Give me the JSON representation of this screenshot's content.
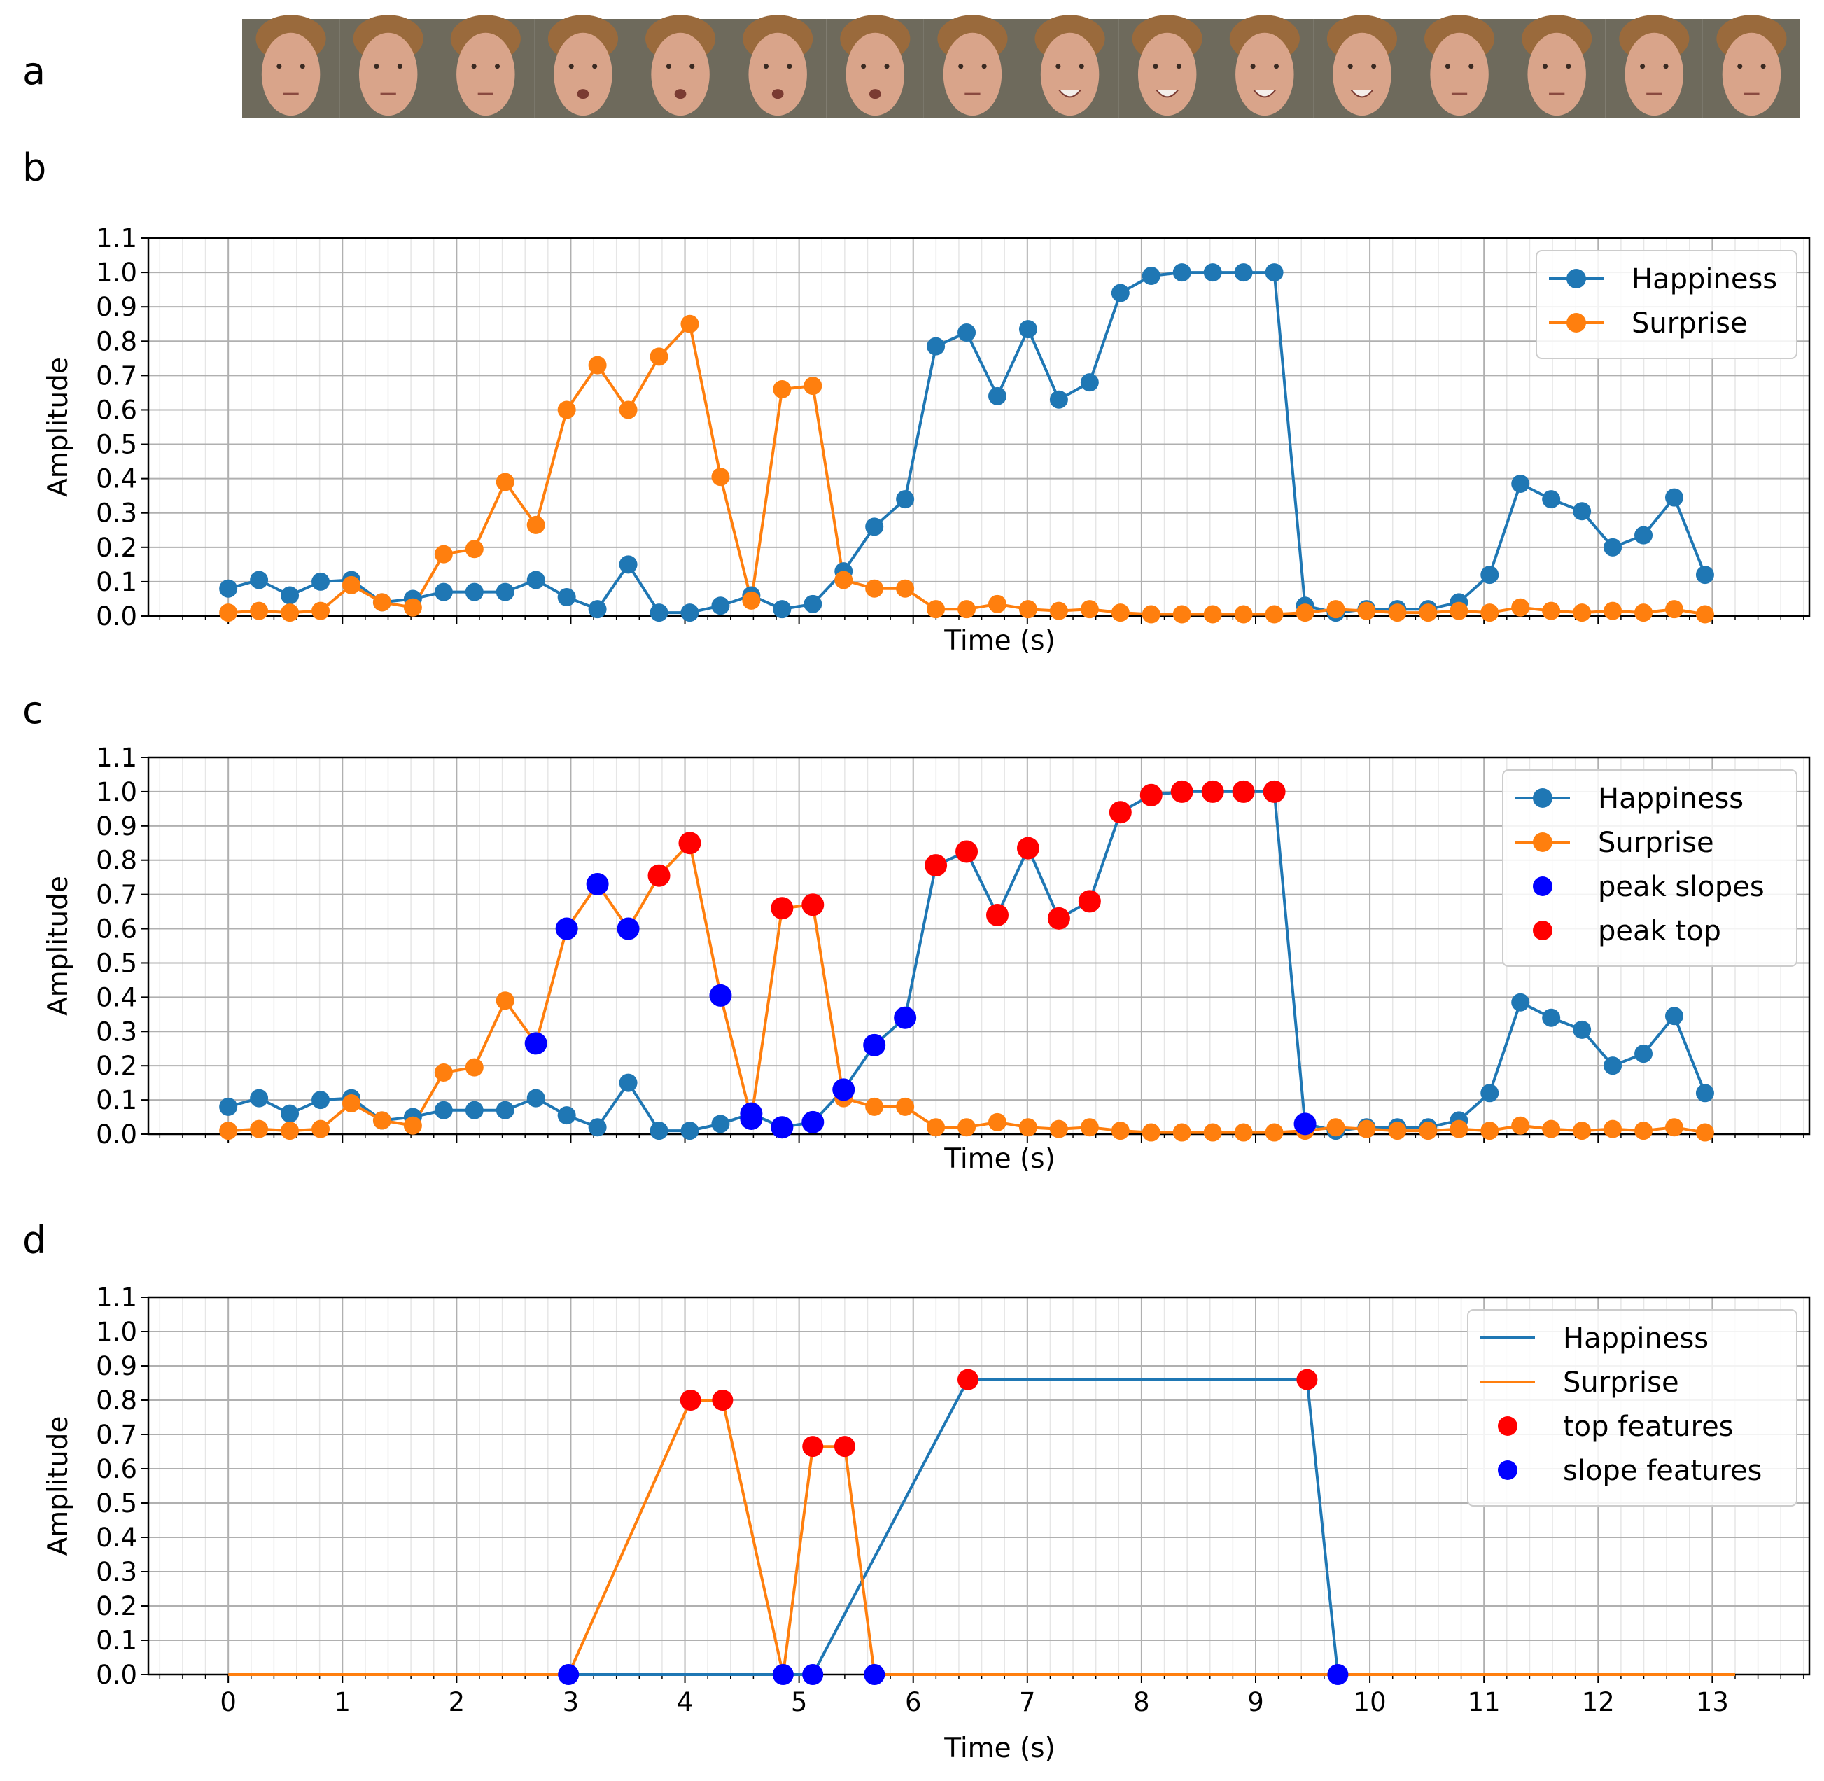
{
  "panel_labels": [
    "a",
    "b",
    "c",
    "d"
  ],
  "face_strip": {
    "frame_count": 16
  },
  "colors": {
    "happiness": "#1f77b4",
    "surprise": "#ff7f0e",
    "peak_slopes": "#0000ff",
    "peak_top": "#ff0000",
    "grid_major": "#b0b0b0",
    "grid_minor": "#e6e6e6",
    "skin": "#d9a48a",
    "background_wall": "#6e6a5c"
  },
  "chart_data": [
    {
      "panel": "b",
      "type": "line",
      "xlabel": "Time (s)",
      "ylabel": "Amplitude",
      "xlim": [
        -0.7,
        13.85
      ],
      "ylim": [
        0,
        1.1
      ],
      "yticks": [
        "0.0",
        "0.1",
        "0.2",
        "0.3",
        "0.4",
        "0.5",
        "0.6",
        "0.7",
        "0.8",
        "0.9",
        "1.0",
        "1.1"
      ],
      "xtick_labels_visible": false,
      "legend_position": "top-right",
      "legend": [
        "Happiness",
        "Surprise"
      ],
      "series": [
        {
          "name": "Happiness",
          "color": "#1f77b4",
          "values": [
            0.08,
            0.105,
            0.06,
            0.1,
            0.105,
            0.04,
            0.05,
            0.07,
            0.07,
            0.07,
            0.105,
            0.055,
            0.02,
            0.15,
            0.01,
            0.01,
            0.03,
            0.06,
            0.02,
            0.035,
            0.13,
            0.26,
            0.34,
            0.785,
            0.825,
            0.64,
            0.835,
            0.63,
            0.68,
            0.94,
            0.99,
            1.0,
            1.0,
            1.0,
            1.0,
            0.03,
            0.01,
            0.02,
            0.02,
            0.02,
            0.04,
            0.12,
            0.385,
            0.34,
            0.305,
            0.2,
            0.235,
            0.345,
            0.12
          ]
        },
        {
          "name": "Surprise",
          "color": "#ff7f0e",
          "values": [
            0.01,
            0.015,
            0.01,
            0.015,
            0.09,
            0.04,
            0.025,
            0.18,
            0.195,
            0.39,
            0.265,
            0.6,
            0.73,
            0.6,
            0.755,
            0.85,
            0.405,
            0.045,
            0.66,
            0.67,
            0.105,
            0.08,
            0.08,
            0.02,
            0.02,
            0.035,
            0.02,
            0.015,
            0.02,
            0.01,
            0.005,
            0.005,
            0.005,
            0.005,
            0.005,
            0.01,
            0.02,
            0.015,
            0.01,
            0.01,
            0.015,
            0.01,
            0.025,
            0.015,
            0.01,
            0.015,
            0.01,
            0.02,
            0.005
          ]
        }
      ]
    },
    {
      "panel": "c",
      "type": "line",
      "xlabel": "Time (s)",
      "ylabel": "Amplitude",
      "xlim": [
        -0.7,
        13.85
      ],
      "ylim": [
        0,
        1.1
      ],
      "yticks": [
        "0.0",
        "0.1",
        "0.2",
        "0.3",
        "0.4",
        "0.5",
        "0.6",
        "0.7",
        "0.8",
        "0.9",
        "1.0",
        "1.1"
      ],
      "xtick_labels_visible": false,
      "legend_position": "top-right",
      "legend": [
        "Happiness",
        "Surprise",
        "peak slopes",
        "peak top"
      ],
      "peak_slopes": {
        "surprise_indices": [
          10,
          11,
          12,
          13,
          16,
          17
        ],
        "happiness_indices": [
          17,
          18,
          19,
          20,
          21,
          22,
          35
        ]
      },
      "peak_top": {
        "surprise_indices": [
          14,
          15,
          18,
          19
        ],
        "happiness_indices": [
          23,
          24,
          25,
          26,
          27,
          28,
          29,
          30,
          31,
          32,
          33,
          34
        ]
      }
    },
    {
      "panel": "d",
      "type": "line",
      "xlabel": "Time (s)",
      "ylabel": "Amplitude",
      "xlim": [
        -0.7,
        13.85
      ],
      "ylim": [
        0,
        1.1
      ],
      "yticks": [
        "0.0",
        "0.1",
        "0.2",
        "0.3",
        "0.4",
        "0.5",
        "0.6",
        "0.7",
        "0.8",
        "0.9",
        "1.0",
        "1.1"
      ],
      "xticks": [
        "0",
        "1",
        "2",
        "3",
        "4",
        "5",
        "6",
        "7",
        "8",
        "9",
        "10",
        "11",
        "12",
        "13"
      ],
      "legend_position": "top-right",
      "legend": [
        "Happiness",
        "Surprise",
        "top features",
        "slope features"
      ],
      "series": [
        {
          "name": "Happiness",
          "color": "#1f77b4",
          "points": [
            [
              0,
              0
            ],
            [
              5.12,
              0
            ],
            [
              6.48,
              0.86
            ],
            [
              9.45,
              0.86
            ],
            [
              9.72,
              0
            ],
            [
              13.2,
              0
            ]
          ]
        },
        {
          "name": "Surprise",
          "color": "#ff7f0e",
          "points": [
            [
              0,
              0
            ],
            [
              2.98,
              0
            ],
            [
              4.05,
              0.8
            ],
            [
              4.33,
              0.8
            ],
            [
              4.86,
              0
            ],
            [
              5.12,
              0.665
            ],
            [
              5.4,
              0.665
            ],
            [
              5.66,
              0
            ],
            [
              13.2,
              0
            ]
          ]
        }
      ],
      "top_features": [
        [
          4.05,
          0.8
        ],
        [
          4.33,
          0.8
        ],
        [
          5.12,
          0.665
        ],
        [
          5.4,
          0.665
        ],
        [
          6.48,
          0.86
        ],
        [
          9.45,
          0.86
        ]
      ],
      "slope_features": [
        [
          2.98,
          0
        ],
        [
          4.86,
          0
        ],
        [
          5.12,
          0
        ],
        [
          5.66,
          0
        ],
        [
          9.72,
          0
        ]
      ]
    }
  ]
}
